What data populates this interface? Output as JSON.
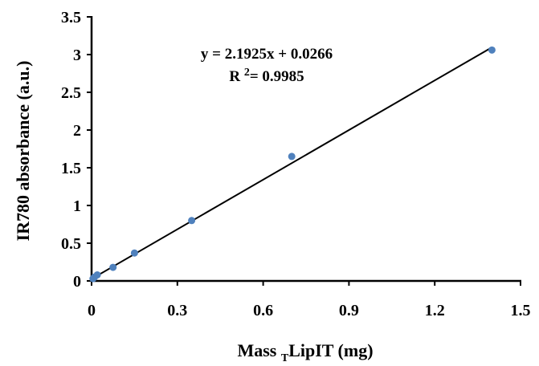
{
  "chart_data": {
    "type": "scatter",
    "title": "",
    "xlabel": {
      "main": "Mass ",
      "subscript": "T",
      "rest": "LipIT (mg)"
    },
    "ylabel": "IR780 absorbance (a.u.)",
    "xlim": [
      0,
      1.5
    ],
    "ylim": [
      0,
      3.5
    ],
    "xticks": [
      "0",
      "0.3",
      "0.6",
      "0.9",
      "1.2",
      "1.5"
    ],
    "yticks": [
      "0",
      "0.5",
      "1",
      "1.5",
      "2",
      "2.5",
      "3",
      "3.5"
    ],
    "grid": false,
    "legend": "none",
    "series": [
      {
        "color": "#4f81bd",
        "points": [
          {
            "x": 0.005,
            "y": 0.03
          },
          {
            "x": 0.01,
            "y": 0.05
          },
          {
            "x": 0.02,
            "y": 0.08
          },
          {
            "x": 0.075,
            "y": 0.18
          },
          {
            "x": 0.15,
            "y": 0.37
          },
          {
            "x": 0.35,
            "y": 0.8
          },
          {
            "x": 0.7,
            "y": 1.65
          },
          {
            "x": 1.4,
            "y": 3.06
          }
        ]
      }
    ],
    "trendline": {
      "type": "linear",
      "slope": 2.1925,
      "intercept": 0.0266,
      "x_range": [
        0,
        1.4
      ],
      "color": "#000000"
    },
    "annotations": {
      "equation": "y = 2.1925x + 0.0266",
      "r2_label": "R ",
      "r2_sup": "2",
      "r2_value": "= 0.9985"
    }
  }
}
